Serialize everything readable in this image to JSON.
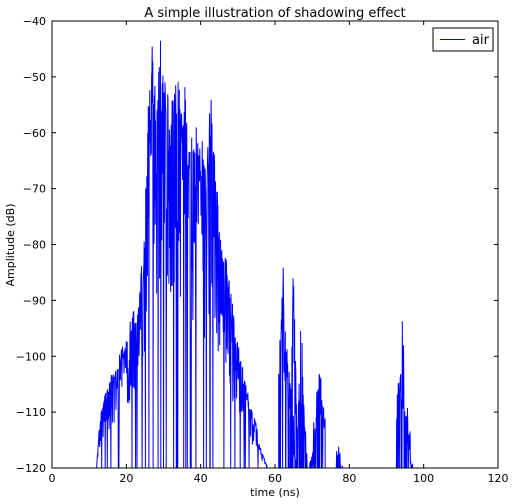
{
  "chart_data": {
    "type": "line",
    "title": "A simple illustration of shadowing effect",
    "xlabel": "time (ns)",
    "ylabel": "Amplitude (dB)",
    "xlim": [
      0,
      120
    ],
    "ylim": [
      -120,
      -40
    ],
    "xticks": [
      0,
      20,
      40,
      60,
      80,
      100,
      120
    ],
    "yticks": [
      -40,
      -50,
      -60,
      -70,
      -80,
      -90,
      -100,
      -110,
      -120
    ],
    "grid": false,
    "legend_position": "top-right",
    "series": [
      {
        "name": "air",
        "color": "#0000ff",
        "envelope": [
          {
            "x": 12.0,
            "y": -120
          },
          {
            "x": 12.5,
            "y": -114
          },
          {
            "x": 13.0,
            "y": -110
          },
          {
            "x": 14.0,
            "y": -107
          },
          {
            "x": 15.0,
            "y": -105
          },
          {
            "x": 16.0,
            "y": -103
          },
          {
            "x": 17.0,
            "y": -101
          },
          {
            "x": 18.0,
            "y": -99
          },
          {
            "x": 19.0,
            "y": -97
          },
          {
            "x": 20.0,
            "y": -96
          },
          {
            "x": 21.0,
            "y": -93
          },
          {
            "x": 22.0,
            "y": -91
          },
          {
            "x": 23.0,
            "y": -88
          },
          {
            "x": 24.0,
            "y": -84
          },
          {
            "x": 25.0,
            "y": -75
          },
          {
            "x": 25.5,
            "y": -60
          },
          {
            "x": 26.0,
            "y": -45
          },
          {
            "x": 26.5,
            "y": -40
          },
          {
            "x": 27.0,
            "y": -42
          },
          {
            "x": 28.0,
            "y": -45
          },
          {
            "x": 29.0,
            "y": -41
          },
          {
            "x": 30.0,
            "y": -46
          },
          {
            "x": 31.0,
            "y": -51
          },
          {
            "x": 32.0,
            "y": -54
          },
          {
            "x": 33.0,
            "y": -43
          },
          {
            "x": 34.0,
            "y": -48
          },
          {
            "x": 35.0,
            "y": -50
          },
          {
            "x": 36.0,
            "y": -51
          },
          {
            "x": 37.0,
            "y": -59
          },
          {
            "x": 38.0,
            "y": -60
          },
          {
            "x": 39.0,
            "y": -57
          },
          {
            "x": 40.0,
            "y": -59
          },
          {
            "x": 41.0,
            "y": -63
          },
          {
            "x": 42.0,
            "y": -58
          },
          {
            "x": 43.0,
            "y": -51
          },
          {
            "x": 44.0,
            "y": -64
          },
          {
            "x": 45.0,
            "y": -72
          },
          {
            "x": 46.0,
            "y": -78
          },
          {
            "x": 47.0,
            "y": -82
          },
          {
            "x": 48.0,
            "y": -86
          },
          {
            "x": 49.0,
            "y": -93
          },
          {
            "x": 50.0,
            "y": -97
          },
          {
            "x": 51.0,
            "y": -100
          },
          {
            "x": 52.0,
            "y": -104
          },
          {
            "x": 53.0,
            "y": -107
          },
          {
            "x": 54.0,
            "y": -110
          },
          {
            "x": 55.0,
            "y": -112
          },
          {
            "x": 56.0,
            "y": -116
          },
          {
            "x": 57.0,
            "y": -118
          },
          {
            "x": 58.0,
            "y": -120
          }
        ],
        "clusters": [
          {
            "x_start": 61.0,
            "x_end": 67.5,
            "peak_x": 62.0,
            "peak_y": -82
          },
          {
            "x_start": 64.0,
            "x_end": 66.0,
            "peak_x": 65.0,
            "peak_y": -79
          },
          {
            "x_start": 66.0,
            "x_end": 69.0,
            "peak_x": 67.0,
            "peak_y": -92
          },
          {
            "x_start": 69.0,
            "x_end": 73.5,
            "peak_x": 72.0,
            "peak_y": -98
          },
          {
            "x_start": 76.5,
            "x_end": 78.5,
            "peak_x": 77.0,
            "peak_y": -112
          },
          {
            "x_start": 92.5,
            "x_end": 97.5,
            "peak_x": 94.0,
            "peak_y": -90
          }
        ]
      }
    ]
  }
}
